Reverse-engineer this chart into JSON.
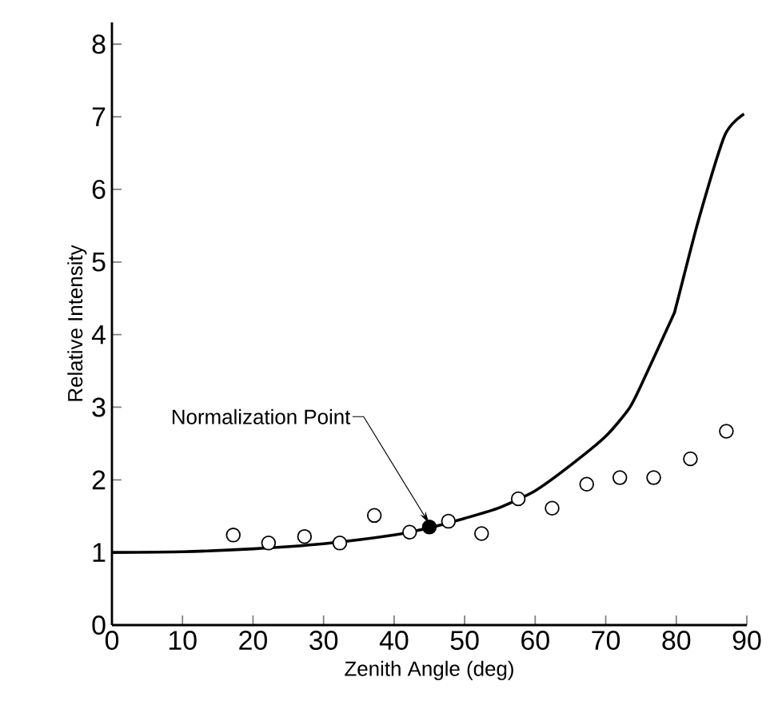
{
  "chart_data": {
    "type": "scatter",
    "xlabel": "Zenith Angle (deg)",
    "ylabel": "Relative Intensity",
    "xlim": [
      0,
      90
    ],
    "ylim": [
      0,
      8.3
    ],
    "xticks": [
      0,
      10,
      20,
      30,
      40,
      50,
      60,
      70,
      80,
      90
    ],
    "yticks": [
      0,
      1,
      2,
      3,
      4,
      5,
      6,
      7,
      8
    ],
    "grid": false,
    "series": [
      {
        "type": "line",
        "color": "#000000",
        "marker": "none",
        "line_style": "solid",
        "x": [
          0,
          10,
          20,
          30,
          40,
          45,
          50,
          55,
          60,
          65,
          70,
          73.3,
          75,
          79.4,
          80,
          83.1,
          86.9,
          89.6
        ],
        "values": [
          1.0,
          1.01,
          1.05,
          1.12,
          1.24,
          1.34,
          1.47,
          1.62,
          1.85,
          2.2,
          2.6,
          2.98,
          3.3,
          4.23,
          4.4,
          5.56,
          6.75,
          7.04
        ]
      },
      {
        "color": "#ffffff",
        "marker": "circle",
        "x": [
          17.2,
          22.2,
          27.3,
          32.3,
          37.2,
          42.2,
          47.7,
          52.4,
          57.6,
          62.4,
          67.3,
          72.0,
          76.8,
          82.0,
          87.1
        ],
        "values": [
          1.24,
          1.13,
          1.22,
          1.13,
          1.51,
          1.28,
          1.43,
          1.26,
          1.74,
          1.61,
          1.94,
          2.03,
          2.03,
          2.29,
          2.67
        ]
      },
      {
        "color": "#000000",
        "marker": "circle",
        "x": [
          45.0
        ],
        "values": [
          1.35
        ]
      }
    ],
    "annotations": [
      {
        "text": "Normalization Point",
        "x": 45.0,
        "y": 1.35
      }
    ]
  }
}
